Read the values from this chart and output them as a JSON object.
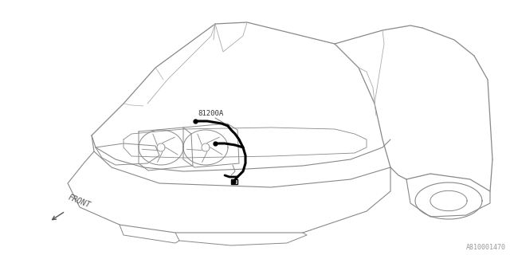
{
  "background_color": "#ffffff",
  "line_color": "#888888",
  "line_color2": "#aaaaaa",
  "harness_color": "#000000",
  "label_81200A": "81200A",
  "label_front": "FRONT",
  "label_part_num": "A810001470",
  "fig_width": 6.4,
  "fig_height": 3.2,
  "dpi": 100
}
